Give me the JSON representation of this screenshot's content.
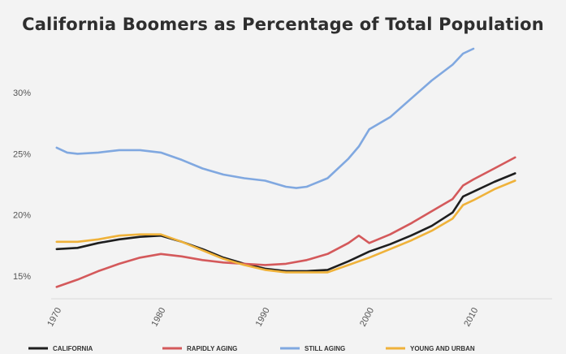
{
  "chart_data": {
    "type": "line",
    "title": "California Boomers as Percentage of Total Population",
    "xlabel": "",
    "ylabel": "",
    "xlim": [
      1969,
      2016
    ],
    "ylim": [
      13,
      33.6
    ],
    "x_ticks": [
      1970,
      1980,
      1990,
      2000,
      2010
    ],
    "y_ticks": [
      15,
      20,
      25,
      30
    ],
    "y_tick_labels": [
      "15%",
      "20%",
      "25%",
      "30%"
    ],
    "legend_position": "bottom",
    "grid": false,
    "series": [
      {
        "name": "CALIFORNIA",
        "color": "#1e1e1e",
        "x": [
          1970,
          1972,
          1974,
          1976,
          1978,
          1980,
          1982,
          1984,
          1986,
          1988,
          1990,
          1992,
          1994,
          1996,
          1998,
          2000,
          2002,
          2004,
          2006,
          2008,
          2009,
          2010,
          2012,
          2014
        ],
        "y": [
          17.2,
          17.3,
          17.7,
          18.0,
          18.2,
          18.3,
          17.8,
          17.2,
          16.5,
          16.0,
          15.6,
          15.4,
          15.4,
          15.5,
          16.2,
          17.0,
          17.6,
          18.3,
          19.1,
          20.2,
          21.5,
          21.9,
          22.7,
          23.4
        ]
      },
      {
        "name": "RAPIDLY AGING",
        "color": "#d4595b",
        "x": [
          1970,
          1972,
          1974,
          1976,
          1978,
          1980,
          1982,
          1984,
          1986,
          1988,
          1990,
          1992,
          1994,
          1996,
          1998,
          1999,
          2000,
          2002,
          2004,
          2006,
          2008,
          2009,
          2010,
          2012,
          2014
        ],
        "y": [
          14.1,
          14.7,
          15.4,
          16.0,
          16.5,
          16.8,
          16.6,
          16.3,
          16.1,
          16.0,
          15.9,
          16.0,
          16.3,
          16.8,
          17.7,
          18.3,
          17.7,
          18.4,
          19.3,
          20.3,
          21.3,
          22.4,
          22.9,
          23.8,
          24.7
        ]
      },
      {
        "name": "STILL AGING",
        "color": "#80a8e0",
        "x": [
          1970,
          1971,
          1972,
          1974,
          1976,
          1978,
          1980,
          1982,
          1984,
          1986,
          1988,
          1990,
          1992,
          1993,
          1994,
          1996,
          1998,
          1999,
          2000,
          2002,
          2004,
          2006,
          2008,
          2009,
          2010
        ],
        "y": [
          25.5,
          25.1,
          25.0,
          25.1,
          25.3,
          25.3,
          25.1,
          24.5,
          23.8,
          23.3,
          23.0,
          22.8,
          22.3,
          22.2,
          22.3,
          23.0,
          24.6,
          25.6,
          27.0,
          28.0,
          29.5,
          31.0,
          32.3,
          33.2,
          33.6
        ]
      },
      {
        "name": "YOUNG AND URBAN",
        "color": "#efb23a",
        "x": [
          1970,
          1972,
          1974,
          1976,
          1978,
          1980,
          1982,
          1984,
          1986,
          1988,
          1990,
          1992,
          1994,
          1996,
          1998,
          2000,
          2002,
          2004,
          2006,
          2008,
          2009,
          2010,
          2012,
          2014
        ],
        "y": [
          17.8,
          17.8,
          18.0,
          18.3,
          18.4,
          18.4,
          17.8,
          17.1,
          16.4,
          15.9,
          15.5,
          15.3,
          15.3,
          15.3,
          15.9,
          16.5,
          17.2,
          17.9,
          18.7,
          19.7,
          20.8,
          21.2,
          22.1,
          22.8
        ]
      }
    ]
  }
}
